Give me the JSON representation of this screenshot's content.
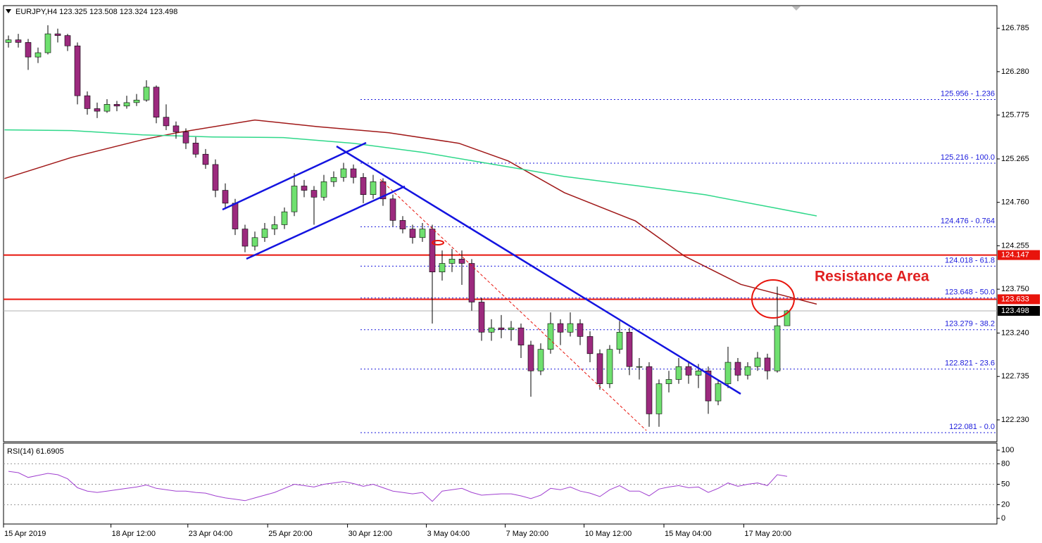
{
  "header": "EURJPY,H4  123.325 123.508 123.324 123.498",
  "chart_data": {
    "type": "candlestick",
    "bull_color": "#6fe06f",
    "bear_color": "#9c2a7e",
    "ylim": [
      121.976,
      127.048
    ],
    "yticks": [
      126.785,
      {
        "value": 126.28,
        "label": "126.280"
      },
      125.775,
      125.265,
      {
        "value": 124.76,
        "label": "124.760"
      },
      124.255,
      {
        "value": 123.75,
        "label": "123.750"
      },
      {
        "value": 123.24,
        "label": "123.240"
      },
      122.735,
      {
        "value": 122.23,
        "label": "122.230"
      }
    ],
    "x_ticks": [
      {
        "value": 0,
        "label": "15 Apr 2019"
      },
      {
        "value": 10.4,
        "label": "18 Apr 12:00"
      },
      {
        "value": 18.2,
        "label": "23 Apr 04:00"
      },
      {
        "value": 26.3,
        "label": "25 Apr 20:00"
      },
      {
        "value": 34.4,
        "label": "30 Apr 12:00"
      },
      {
        "value": 42.4,
        "label": "3 May 04:00"
      },
      {
        "value": 50.4,
        "label": "7 May 20:00"
      },
      {
        "value": 58.4,
        "label": "10 May 12:00"
      },
      {
        "value": 66.5,
        "label": "15 May 04:00"
      },
      {
        "value": 74.6,
        "label": "17 May 20:00"
      }
    ],
    "ohlc": [
      [
        126.62,
        126.7,
        126.56,
        126.65
      ],
      [
        126.65,
        126.72,
        126.56,
        126.62
      ],
      [
        126.62,
        126.66,
        126.3,
        126.45
      ],
      [
        126.45,
        126.56,
        126.38,
        126.5
      ],
      [
        126.5,
        126.82,
        126.48,
        126.72
      ],
      [
        126.72,
        126.78,
        126.62,
        126.7
      ],
      [
        126.7,
        126.72,
        126.52,
        126.58
      ],
      [
        126.58,
        126.62,
        125.9,
        126.0
      ],
      [
        126.0,
        126.05,
        125.78,
        125.85
      ],
      [
        125.85,
        125.92,
        125.74,
        125.82
      ],
      [
        125.82,
        125.96,
        125.8,
        125.9
      ],
      [
        125.9,
        125.94,
        125.82,
        125.88
      ],
      [
        125.88,
        126.0,
        125.85,
        125.92
      ],
      [
        125.92,
        126.02,
        125.88,
        125.95
      ],
      [
        125.95,
        126.18,
        125.93,
        126.1
      ],
      [
        126.1,
        126.12,
        125.68,
        125.75
      ],
      [
        125.75,
        125.9,
        125.6,
        125.65
      ],
      [
        125.65,
        125.7,
        125.5,
        125.58
      ],
      [
        125.58,
        125.62,
        125.38,
        125.45
      ],
      [
        125.45,
        125.52,
        125.28,
        125.32
      ],
      [
        125.32,
        125.38,
        125.15,
        125.2
      ],
      [
        125.2,
        125.26,
        124.82,
        124.9
      ],
      [
        124.9,
        124.98,
        124.68,
        124.75
      ],
      [
        124.75,
        124.8,
        124.38,
        124.45
      ],
      [
        124.45,
        124.5,
        124.18,
        124.25
      ],
      [
        124.25,
        124.42,
        124.2,
        124.35
      ],
      [
        124.35,
        124.52,
        124.3,
        124.45
      ],
      [
        124.45,
        124.6,
        124.38,
        124.5
      ],
      [
        124.5,
        124.7,
        124.45,
        124.65
      ],
      [
        124.65,
        125.1,
        124.6,
        124.95
      ],
      [
        124.95,
        125.02,
        124.82,
        124.9
      ],
      [
        124.9,
        124.95,
        124.5,
        124.82
      ],
      [
        124.82,
        125.08,
        124.78,
        125.0
      ],
      [
        125.0,
        125.12,
        124.94,
        125.05
      ],
      [
        125.05,
        125.22,
        125.0,
        125.15
      ],
      [
        125.15,
        125.2,
        124.98,
        125.05
      ],
      [
        125.05,
        125.1,
        124.75,
        124.85
      ],
      [
        124.85,
        125.08,
        124.8,
        125.0
      ],
      [
        125.0,
        125.04,
        124.72,
        124.8
      ],
      [
        124.8,
        124.85,
        124.48,
        124.55
      ],
      [
        124.55,
        124.6,
        124.4,
        124.45
      ],
      [
        124.45,
        124.5,
        124.28,
        124.35
      ],
      [
        124.35,
        124.52,
        124.3,
        124.45
      ],
      [
        124.45,
        124.5,
        123.35,
        123.95
      ],
      [
        123.95,
        124.2,
        123.85,
        124.05
      ],
      [
        124.05,
        124.22,
        123.95,
        124.1
      ],
      [
        124.1,
        124.2,
        123.8,
        124.05
      ],
      [
        124.05,
        124.1,
        123.5,
        123.6
      ],
      [
        123.6,
        123.65,
        123.15,
        123.25
      ],
      [
        123.25,
        123.4,
        123.15,
        123.3
      ],
      [
        123.3,
        123.45,
        123.18,
        123.28
      ],
      [
        123.28,
        123.38,
        123.15,
        123.3
      ],
      [
        123.3,
        123.35,
        122.95,
        123.1
      ],
      [
        123.1,
        123.15,
        122.5,
        122.8
      ],
      [
        122.8,
        123.12,
        122.75,
        123.05
      ],
      [
        123.05,
        123.48,
        123.0,
        123.35
      ],
      [
        123.35,
        123.4,
        123.1,
        123.25
      ],
      [
        123.25,
        123.48,
        123.2,
        123.35
      ],
      [
        123.35,
        123.4,
        123.1,
        123.2
      ],
      [
        123.2,
        123.26,
        122.9,
        123.0
      ],
      [
        123.0,
        123.05,
        122.58,
        122.65
      ],
      [
        122.65,
        123.1,
        122.6,
        123.05
      ],
      [
        123.05,
        123.38,
        123.0,
        123.25
      ],
      [
        123.25,
        123.3,
        122.75,
        122.85
      ],
      [
        122.85,
        122.95,
        122.7,
        122.85
      ],
      [
        122.85,
        122.9,
        122.15,
        122.3
      ],
      [
        122.3,
        122.7,
        122.15,
        122.65
      ],
      [
        122.65,
        122.8,
        122.55,
        122.7
      ],
      [
        122.7,
        122.95,
        122.65,
        122.85
      ],
      [
        122.85,
        122.9,
        122.65,
        122.75
      ],
      [
        122.75,
        122.88,
        122.6,
        122.8
      ],
      [
        122.8,
        122.85,
        122.3,
        122.45
      ],
      [
        122.45,
        122.7,
        122.4,
        122.65
      ],
      [
        122.65,
        123.08,
        122.6,
        122.9
      ],
      [
        122.9,
        122.95,
        122.68,
        122.75
      ],
      [
        122.75,
        122.9,
        122.7,
        122.85
      ],
      [
        122.85,
        123.02,
        122.8,
        122.95
      ],
      [
        122.95,
        123.0,
        122.7,
        122.8
      ],
      [
        122.8,
        123.78,
        122.78,
        123.325
      ],
      [
        123.325,
        123.508,
        123.324,
        123.498
      ]
    ],
    "moving_averages": [
      {
        "color": "#a01818",
        "x": [
          -0.4,
          6.4,
          13.6,
          17.1,
          25,
          31.4,
          38.6,
          45.7,
          50.7,
          56.4,
          63.6,
          68.6,
          74.3,
          82
        ],
        "values": [
          125.037,
          125.283,
          125.488,
          125.57,
          125.718,
          125.64,
          125.57,
          125.447,
          125.242,
          124.873,
          124.544,
          124.134,
          123.806,
          123.576
        ]
      },
      {
        "color": "#2fd88a",
        "x": [
          -0.4,
          6.4,
          13.6,
          20.7,
          27.9,
          35,
          42.1,
          49.3,
          56.4,
          63.6,
          70.7,
          77.9,
          82
        ],
        "values": [
          125.603,
          125.595,
          125.545,
          125.521,
          125.513,
          125.447,
          125.34,
          125.2,
          125.061,
          124.955,
          124.848,
          124.692,
          124.602
        ]
      }
    ],
    "price_lines": [
      124.147,
      123.633
    ],
    "price_line_color": "#e8140c",
    "current_price": 123.498,
    "fib_levels": [
      {
        "value": 125.956,
        "label": "125.956 - 1.236"
      },
      {
        "value": 125.216,
        "label": "125.216 - 100.0"
      },
      {
        "value": 124.476,
        "label": "124.476 - 0.764"
      },
      {
        "value": 124.018,
        "label": "124.018 - 61.8"
      },
      {
        "value": 123.648,
        "label": "123.648 - 50.0"
      },
      {
        "value": 123.279,
        "label": "123.279 - 38.2"
      },
      {
        "value": 122.821,
        "label": "122.821 - 23.6"
      },
      {
        "value": 122.081,
        "label": "122.081 - 0.0"
      }
    ],
    "annotation": "Resistance Area",
    "rsi": {
      "title": "RSI(14) 61.6905",
      "color": "#a040d0",
      "ylim": [
        0,
        100
      ],
      "yticks": [
        100,
        80,
        50,
        20,
        0
      ],
      "values": [
        69,
        67,
        60,
        63,
        66,
        64,
        58,
        45,
        40,
        38,
        40,
        42,
        44,
        46,
        49,
        44,
        42,
        40,
        40,
        38,
        37,
        33,
        30,
        28,
        26,
        30,
        34,
        38,
        44,
        50,
        48,
        46,
        50,
        52,
        54,
        51,
        47,
        50,
        45,
        40,
        38,
        36,
        38,
        25,
        40,
        42,
        44,
        38,
        34,
        35,
        36,
        36,
        33,
        29,
        34,
        44,
        42,
        46,
        40,
        37,
        32,
        42,
        48,
        40,
        40,
        33,
        43,
        46,
        48,
        45,
        46,
        38,
        44,
        52,
        47,
        50,
        52,
        48,
        64,
        61.6905
      ]
    }
  }
}
